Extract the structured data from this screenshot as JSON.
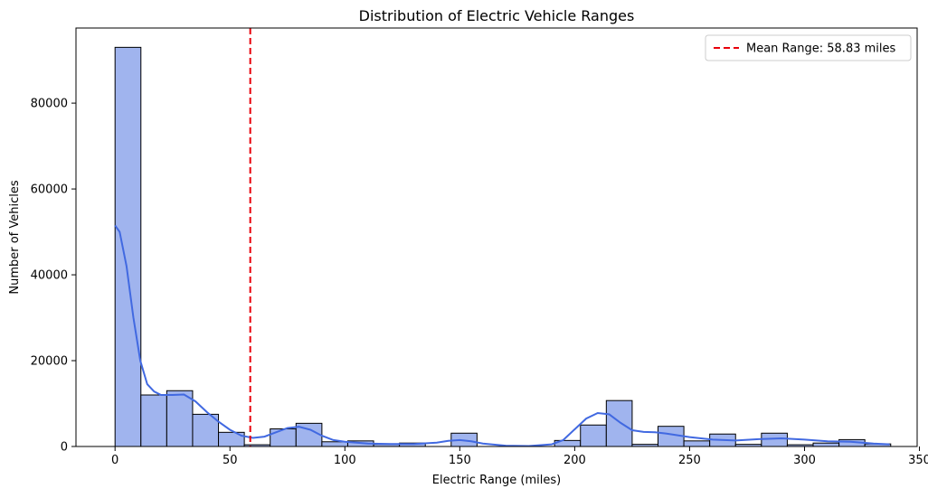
{
  "chart_data": {
    "type": "bar",
    "title": "Distribution of Electric Vehicle Ranges",
    "xlabel": "Electric Range (miles)",
    "ylabel": "Number of Vehicles",
    "xlim": [
      -17,
      349
    ],
    "ylim": [
      0,
      97500
    ],
    "xticks": [
      0,
      50,
      100,
      150,
      200,
      250,
      300,
      350
    ],
    "yticks": [
      0,
      20000,
      40000,
      60000,
      80000
    ],
    "bin_width": 11.25,
    "bins": [
      {
        "x0": 0,
        "count": 93000
      },
      {
        "x0": 11.25,
        "count": 12000
      },
      {
        "x0": 22.5,
        "count": 13000
      },
      {
        "x0": 33.75,
        "count": 7500
      },
      {
        "x0": 45,
        "count": 3300
      },
      {
        "x0": 56.25,
        "count": 400
      },
      {
        "x0": 67.5,
        "count": 4100
      },
      {
        "x0": 78.75,
        "count": 5400
      },
      {
        "x0": 90,
        "count": 1100
      },
      {
        "x0": 101.25,
        "count": 1300
      },
      {
        "x0": 112.5,
        "count": 500
      },
      {
        "x0": 123.75,
        "count": 800
      },
      {
        "x0": 135,
        "count": 0
      },
      {
        "x0": 146.25,
        "count": 3100
      },
      {
        "x0": 157.5,
        "count": 0
      },
      {
        "x0": 168.75,
        "count": 0
      },
      {
        "x0": 180,
        "count": 0
      },
      {
        "x0": 191.25,
        "count": 1400
      },
      {
        "x0": 202.5,
        "count": 5000
      },
      {
        "x0": 213.75,
        "count": 10700
      },
      {
        "x0": 225,
        "count": 500
      },
      {
        "x0": 236.25,
        "count": 4700
      },
      {
        "x0": 247.5,
        "count": 1300
      },
      {
        "x0": 258.75,
        "count": 2900
      },
      {
        "x0": 270,
        "count": 500
      },
      {
        "x0": 281.25,
        "count": 3100
      },
      {
        "x0": 292.5,
        "count": 400
      },
      {
        "x0": 303.75,
        "count": 800
      },
      {
        "x0": 315,
        "count": 1600
      },
      {
        "x0": 326.25,
        "count": 600
      }
    ],
    "kde": {
      "name": "kde",
      "x": [
        0,
        2,
        5,
        8,
        11,
        14,
        17,
        20,
        25,
        30,
        35,
        40,
        45,
        50,
        55,
        60,
        65,
        70,
        75,
        80,
        85,
        90,
        95,
        100,
        110,
        120,
        130,
        140,
        145,
        150,
        155,
        160,
        170,
        180,
        190,
        195,
        200,
        205,
        210,
        215,
        220,
        225,
        230,
        235,
        240,
        250,
        260,
        270,
        280,
        290,
        300,
        310,
        320,
        330,
        337
      ],
      "y": [
        51500,
        50000,
        42000,
        30000,
        20000,
        14500,
        12800,
        12000,
        12000,
        12100,
        10500,
        8000,
        5800,
        3900,
        2500,
        2000,
        2300,
        3300,
        4300,
        4600,
        3900,
        2500,
        1500,
        1100,
        700,
        600,
        600,
        900,
        1300,
        1500,
        1200,
        700,
        200,
        100,
        500,
        1500,
        4000,
        6500,
        7800,
        7500,
        5500,
        3800,
        3400,
        3300,
        3000,
        2200,
        1600,
        1400,
        1700,
        1900,
        1600,
        1200,
        1100,
        700,
        500
      ]
    },
    "reference_line": {
      "x": 58.83,
      "label": "Mean Range: 58.83 miles",
      "style": "dashed"
    },
    "legend_position": "top-right",
    "grid": false,
    "colors": {
      "bar_fill": "#a0b4ee",
      "bar_edge": "#000000",
      "kde_line": "#4169e1",
      "mean_line": "#e8000b"
    }
  }
}
